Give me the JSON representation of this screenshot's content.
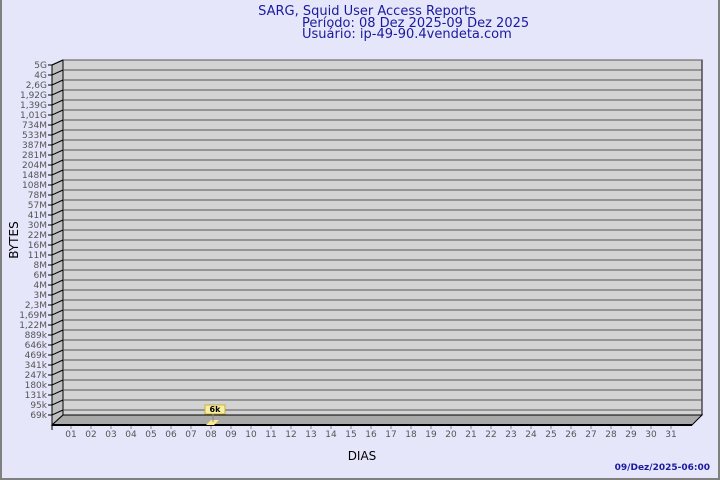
{
  "header": {
    "title": "SARG, Squid User Access Reports",
    "period": "Período: 08 Dez 2025-09 Dez 2025",
    "user": "Usuário: ip-49-90.4vendeta.com"
  },
  "footer": {
    "timestamp": "09/Dez/2025-06:00"
  },
  "chart_data": {
    "type": "bar",
    "title": "SARG, Squid User Access Reports",
    "xlabel": "DIAS",
    "ylabel": "BYTES",
    "y_scale": "log",
    "grid": true,
    "y_tick_labels": [
      "5G",
      "4G",
      "2,6G",
      "1,92G",
      "1,39G",
      "1,01G",
      "734M",
      "533M",
      "387M",
      "281M",
      "204M",
      "148M",
      "108M",
      "78M",
      "57M",
      "41M",
      "30M",
      "22M",
      "16M",
      "11M",
      "8M",
      "6M",
      "4M",
      "3M",
      "2,3M",
      "1,69M",
      "1,22M",
      "889k",
      "646k",
      "469k",
      "341k",
      "247k",
      "180k",
      "131k",
      "95k",
      "69k"
    ],
    "categories": [
      "01",
      "02",
      "03",
      "04",
      "05",
      "06",
      "07",
      "08",
      "09",
      "10",
      "11",
      "12",
      "13",
      "14",
      "15",
      "16",
      "17",
      "18",
      "19",
      "20",
      "21",
      "22",
      "23",
      "24",
      "25",
      "26",
      "27",
      "28",
      "29",
      "30",
      "31"
    ],
    "bars": [
      {
        "category": "08",
        "value": 6000,
        "label": "6k"
      }
    ],
    "colors": {
      "back_wall": "#d3d3d3",
      "side_wall": "#c0c0c0",
      "bar": "#ffe88c",
      "label_box": "#f8f0a0",
      "background": "#e6e6fa"
    }
  }
}
